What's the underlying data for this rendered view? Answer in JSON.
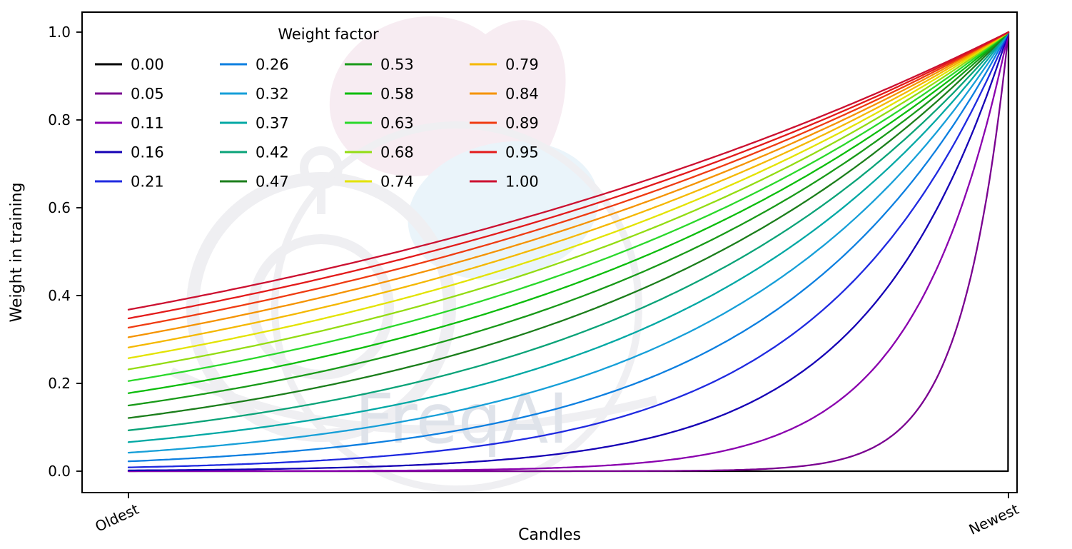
{
  "chart_data": {
    "type": "line",
    "title": "",
    "xlabel": "Candles",
    "ylabel": "Weight in training",
    "x_tick_labels": [
      "Oldest",
      "Newest"
    ],
    "y_tick_labels": [
      "0.0",
      "0.2",
      "0.4",
      "0.6",
      "0.8",
      "1.0"
    ],
    "y_ticks": [
      0.0,
      0.2,
      0.4,
      0.6,
      0.8,
      1.0
    ],
    "x_range": [
      0,
      1
    ],
    "ylim": [
      0,
      1
    ],
    "grid": false,
    "legend": {
      "title": "Weight factor",
      "position": "upper-left-inside",
      "ncols": 4,
      "rows_per_col": 5,
      "frame": false
    },
    "curve_formula": "weight(x) = exp(-(1 - x) / factor) for x in [0,1] oldest->newest; factor 0 gives weight 0 everywhere except 1 at newest",
    "x_samples": [
      0,
      0.25,
      0.5,
      0.75,
      1.0
    ],
    "series": [
      {
        "label": "0.00",
        "factor": 0.0,
        "color": "#000000",
        "y_samples": [
          0,
          0,
          0,
          0,
          1
        ]
      },
      {
        "label": "0.05",
        "factor": 0.0526,
        "color": "#7a0090",
        "y_samples": [
          0,
          0,
          0.0001,
          0.0087,
          1
        ]
      },
      {
        "label": "0.11",
        "factor": 0.1053,
        "color": "#8a00ae",
        "y_samples": [
          0.0001,
          0.0008,
          0.0087,
          0.0931,
          1
        ]
      },
      {
        "label": "0.16",
        "factor": 0.1579,
        "color": "#1500b5",
        "y_samples": [
          0.0018,
          0.0087,
          0.0421,
          0.2053,
          1
        ]
      },
      {
        "label": "0.21",
        "factor": 0.2105,
        "color": "#1f2ae0",
        "y_samples": [
          0.0087,
          0.0284,
          0.0931,
          0.305,
          1
        ]
      },
      {
        "label": "0.26",
        "factor": 0.2632,
        "color": "#0c7fe0",
        "y_samples": [
          0.0224,
          0.0578,
          0.1496,
          0.3867,
          1
        ]
      },
      {
        "label": "0.32",
        "factor": 0.3158,
        "color": "#169fd8",
        "y_samples": [
          0.0421,
          0.0931,
          0.2053,
          0.4531,
          1
        ]
      },
      {
        "label": "0.37",
        "factor": 0.3684,
        "color": "#00a8a4",
        "y_samples": [
          0.0663,
          0.1306,
          0.2574,
          0.5073,
          1
        ]
      },
      {
        "label": "0.42",
        "factor": 0.4211,
        "color": "#0aa378",
        "y_samples": [
          0.0931,
          0.1684,
          0.305,
          0.5523,
          1
        ]
      },
      {
        "label": "0.47",
        "factor": 0.4737,
        "color": "#1b7e1b",
        "y_samples": [
          0.1211,
          0.2053,
          0.348,
          0.59,
          1
        ]
      },
      {
        "label": "0.53",
        "factor": 0.5263,
        "color": "#189a18",
        "y_samples": [
          0.1496,
          0.2405,
          0.3867,
          0.6219,
          1
        ]
      },
      {
        "label": "0.58",
        "factor": 0.5789,
        "color": "#0bbd0b",
        "y_samples": [
          0.1778,
          0.2737,
          0.4216,
          0.6493,
          1
        ]
      },
      {
        "label": "0.63",
        "factor": 0.6316,
        "color": "#2ad82a",
        "y_samples": [
          0.2053,
          0.305,
          0.4531,
          0.6732,
          1
        ]
      },
      {
        "label": "0.68",
        "factor": 0.6842,
        "color": "#93dc12",
        "y_samples": [
          0.2319,
          0.3341,
          0.4816,
          0.6939,
          1
        ]
      },
      {
        "label": "0.74",
        "factor": 0.7368,
        "color": "#e3e300",
        "y_samples": [
          0.2574,
          0.3613,
          0.5073,
          0.7123,
          1
        ]
      },
      {
        "label": "0.79",
        "factor": 0.7895,
        "color": "#f5b800",
        "y_samples": [
          0.2817,
          0.3867,
          0.5308,
          0.7286,
          1
        ]
      },
      {
        "label": "0.84",
        "factor": 0.8421,
        "color": "#f59300",
        "y_samples": [
          0.305,
          0.4104,
          0.5523,
          0.7431,
          1
        ]
      },
      {
        "label": "0.89",
        "factor": 0.8947,
        "color": "#ef3b10",
        "y_samples": [
          0.327,
          0.4325,
          0.5719,
          0.7562,
          1
        ]
      },
      {
        "label": "0.95",
        "factor": 0.9474,
        "color": "#e31a1a",
        "y_samples": [
          0.348,
          0.4531,
          0.59,
          0.7681,
          1
        ]
      },
      {
        "label": "1.00",
        "factor": 1.0,
        "color": "#cc1030",
        "y_samples": [
          0.3679,
          0.4724,
          0.6065,
          0.7788,
          1
        ]
      }
    ]
  },
  "watermark": {
    "text": "FreqAI",
    "text_color": "#dfe3ea",
    "shape_pink": "#f7ecf2",
    "shape_blue": "#eaf4fa",
    "shape_gray": "#efeff2"
  }
}
